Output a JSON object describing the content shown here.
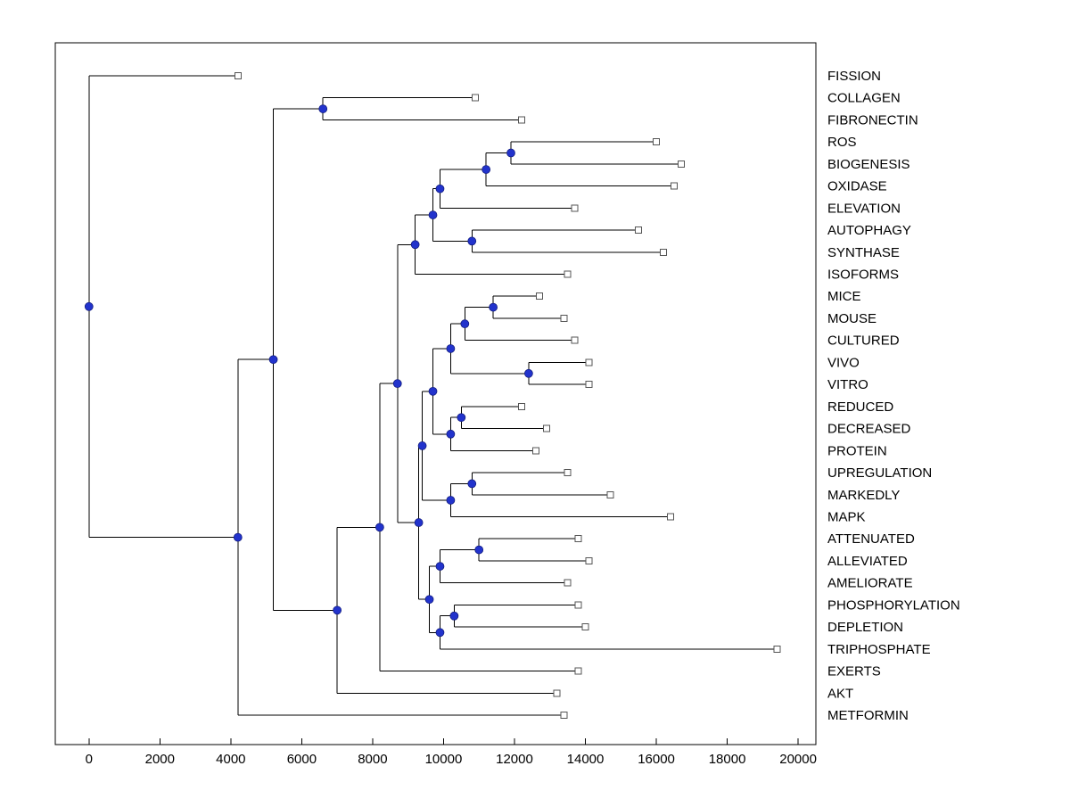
{
  "figure": {
    "background": "#ffffff",
    "colors": {
      "branch_line": "#000000",
      "axis_line": "#000000",
      "internal_node_fill": "#2233cc",
      "internal_node_stroke": "#101a7a",
      "leaf_marker_fill": "#ffffff",
      "leaf_marker_stroke": "#555555",
      "text": "#000000"
    }
  },
  "chart_data": {
    "type": "dendrogram",
    "orientation": "root-left",
    "title": "",
    "xlabel": "",
    "ylabel": "",
    "grid": false,
    "legend": null,
    "x_axis": {
      "range": [
        -950,
        20500
      ],
      "ticks": [
        {
          "value": 0,
          "label": "0"
        },
        {
          "value": 2000,
          "label": "2000"
        },
        {
          "value": 4000,
          "label": "4000"
        },
        {
          "value": 6000,
          "label": "6000"
        },
        {
          "value": 8000,
          "label": "8000"
        },
        {
          "value": 10000,
          "label": "10000"
        },
        {
          "value": 12000,
          "label": "12000"
        },
        {
          "value": 14000,
          "label": "14000"
        },
        {
          "value": 16000,
          "label": "16000"
        },
        {
          "value": 18000,
          "label": "18000"
        },
        {
          "value": 20000,
          "label": "20000"
        }
      ]
    },
    "leaf_labels": [
      "FISSION",
      "COLLAGEN",
      "FIBRONECTIN",
      "ROS",
      "BIOGENESIS",
      "OXIDASE",
      "ELEVATION",
      "AUTOPHAGY",
      "SYNTHASE",
      "ISOFORMS",
      "MICE",
      "MOUSE",
      "CULTURED",
      "VIVO",
      "VITRO",
      "REDUCED",
      "DECREASED",
      "PROTEIN",
      "UPREGULATION",
      "MARKEDLY",
      "MAPK",
      "ATTENUATED",
      "ALLEVIATED",
      "AMELIORATE",
      "PHOSPHORYLATION",
      "DEPLETION",
      "TRIPHOSPHATE",
      "EXERTS",
      "AKT",
      "METFORMIN"
    ],
    "tree": {
      "d": 0,
      "children": [
        {
          "label": "FISSION",
          "d": 4200
        },
        {
          "d": 4200,
          "children": [
            {
              "d": 5200,
              "children": [
                {
                  "d": 6600,
                  "children": [
                    {
                      "label": "COLLAGEN",
                      "d": 10900
                    },
                    {
                      "label": "FIBRONECTIN",
                      "d": 12200
                    }
                  ]
                },
                {
                  "d": 7000,
                  "children": [
                    {
                      "d": 8200,
                      "children": [
                        {
                          "d": 8700,
                          "children": [
                            {
                              "d": 9200,
                              "children": [
                                {
                                  "d": 9700,
                                  "children": [
                                    {
                                      "d": 9900,
                                      "children": [
                                        {
                                          "d": 11200,
                                          "children": [
                                            {
                                              "d": 11900,
                                              "children": [
                                                {
                                                  "label": "ROS",
                                                  "d": 16000
                                                },
                                                {
                                                  "label": "BIOGENESIS",
                                                  "d": 16700
                                                }
                                              ]
                                            },
                                            {
                                              "label": "OXIDASE",
                                              "d": 16500
                                            }
                                          ]
                                        },
                                        {
                                          "label": "ELEVATION",
                                          "d": 13700
                                        }
                                      ]
                                    },
                                    {
                                      "d": 10800,
                                      "children": [
                                        {
                                          "label": "AUTOPHAGY",
                                          "d": 15500
                                        },
                                        {
                                          "label": "SYNTHASE",
                                          "d": 16200
                                        }
                                      ]
                                    }
                                  ]
                                },
                                {
                                  "label": "ISOFORMS",
                                  "d": 13500
                                }
                              ]
                            },
                            {
                              "d": 9300,
                              "children": [
                                {
                                  "d": 9400,
                                  "children": [
                                    {
                                      "d": 9700,
                                      "children": [
                                        {
                                          "d": 10200,
                                          "children": [
                                            {
                                              "d": 10600,
                                              "children": [
                                                {
                                                  "d": 11400,
                                                  "children": [
                                                    {
                                                      "label": "MICE",
                                                      "d": 12700
                                                    },
                                                    {
                                                      "label": "MOUSE",
                                                      "d": 13400
                                                    }
                                                  ]
                                                },
                                                {
                                                  "label": "CULTURED",
                                                  "d": 13700
                                                }
                                              ]
                                            },
                                            {
                                              "d": 12400,
                                              "children": [
                                                {
                                                  "label": "VIVO",
                                                  "d": 14100
                                                },
                                                {
                                                  "label": "VITRO",
                                                  "d": 14100
                                                }
                                              ]
                                            }
                                          ]
                                        },
                                        {
                                          "d": 10200,
                                          "children": [
                                            {
                                              "d": 10500,
                                              "children": [
                                                {
                                                  "label": "REDUCED",
                                                  "d": 12200
                                                },
                                                {
                                                  "label": "DECREASED",
                                                  "d": 12900
                                                }
                                              ]
                                            },
                                            {
                                              "label": "PROTEIN",
                                              "d": 12600
                                            }
                                          ]
                                        }
                                      ]
                                    },
                                    {
                                      "d": 10200,
                                      "children": [
                                        {
                                          "d": 10800,
                                          "children": [
                                            {
                                              "label": "UPREGULATION",
                                              "d": 13500
                                            },
                                            {
                                              "label": "MARKEDLY",
                                              "d": 14700
                                            }
                                          ]
                                        },
                                        {
                                          "label": "MAPK",
                                          "d": 16400
                                        }
                                      ]
                                    }
                                  ]
                                },
                                {
                                  "d": 9600,
                                  "children": [
                                    {
                                      "d": 9900,
                                      "children": [
                                        {
                                          "d": 11000,
                                          "children": [
                                            {
                                              "label": "ATTENUATED",
                                              "d": 13800
                                            },
                                            {
                                              "label": "ALLEVIATED",
                                              "d": 14100
                                            }
                                          ]
                                        },
                                        {
                                          "label": "AMELIORATE",
                                          "d": 13500
                                        }
                                      ]
                                    },
                                    {
                                      "d": 9900,
                                      "children": [
                                        {
                                          "d": 10300,
                                          "children": [
                                            {
                                              "label": "PHOSPHORYLATION",
                                              "d": 13800
                                            },
                                            {
                                              "label": "DEPLETION",
                                              "d": 14000
                                            }
                                          ]
                                        },
                                        {
                                          "label": "TRIPHOSPHATE",
                                          "d": 19400
                                        }
                                      ]
                                    }
                                  ]
                                }
                              ]
                            }
                          ]
                        },
                        {
                          "label": "EXERTS",
                          "d": 13800
                        }
                      ]
                    },
                    {
                      "label": "AKT",
                      "d": 13200
                    }
                  ]
                }
              ]
            },
            {
              "label": "METFORMIN",
              "d": 13400
            }
          ]
        }
      ]
    }
  }
}
